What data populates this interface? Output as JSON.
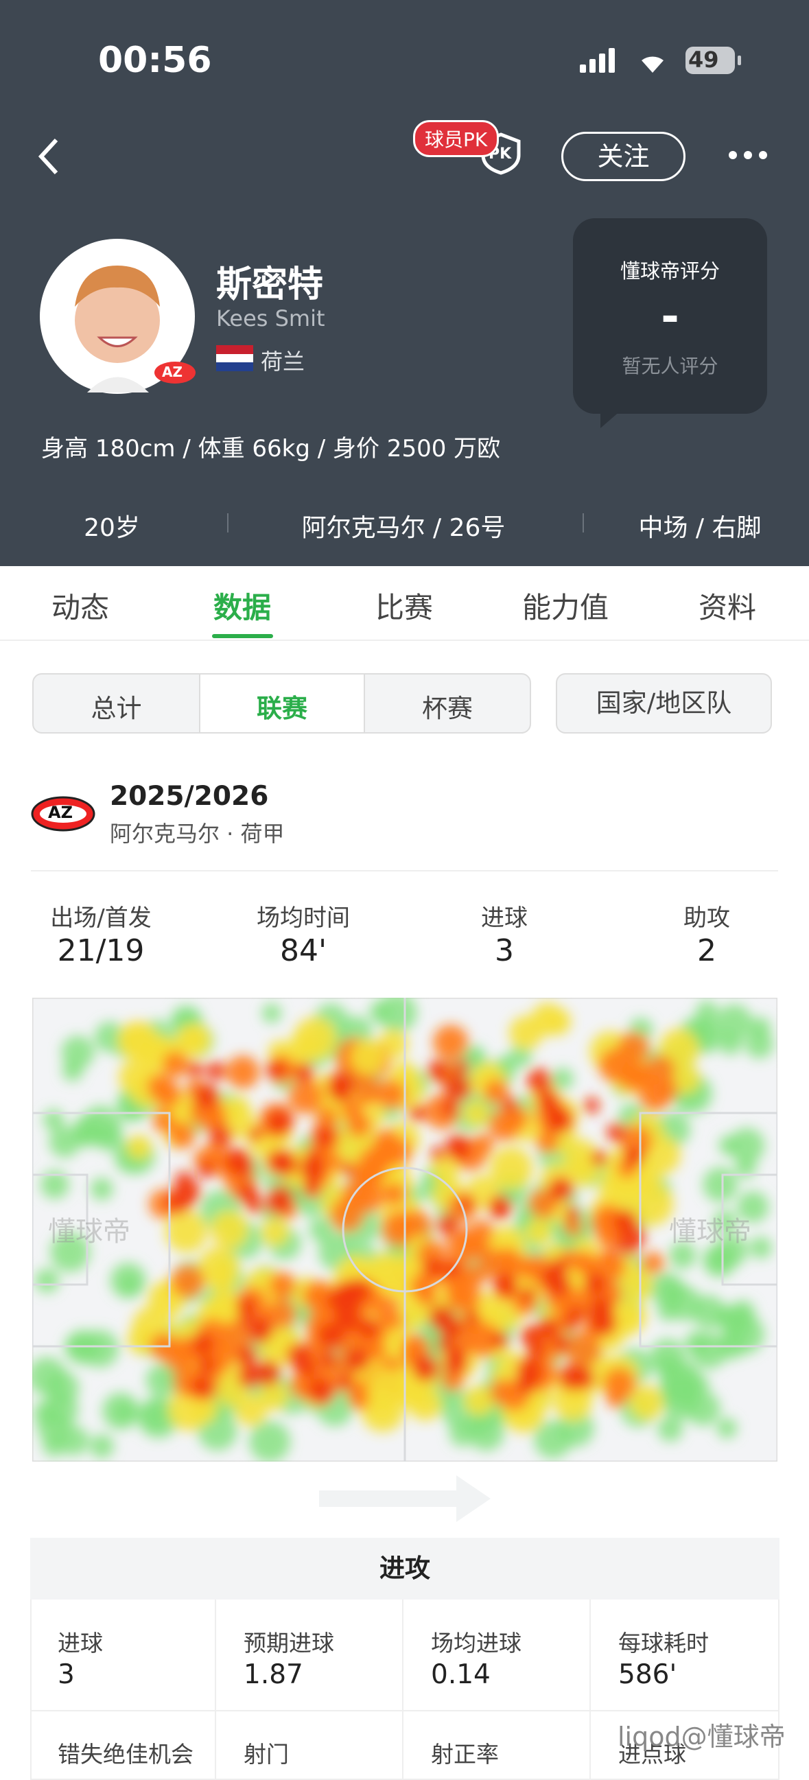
{
  "status": {
    "time": "00:56",
    "battery": "49"
  },
  "header": {
    "pk_badge": "球员PK",
    "pk_icon": "PK",
    "follow": "关注"
  },
  "profile": {
    "name_cn": "斯密特",
    "name_en": "Kees Smit",
    "nationality": "荷兰",
    "club_badge": "AZ",
    "info": "身高 180cm / 体重 66kg / 身价 2500 万欧"
  },
  "rating": {
    "title": "懂球帝评分",
    "value": "-",
    "note": "暂无人评分"
  },
  "meta": [
    "20岁",
    "阿尔克马尔 / 26号",
    "中场 / 右脚"
  ],
  "tabs": [
    "动态",
    "数据",
    "比赛",
    "能力值",
    "资料"
  ],
  "subtabs": [
    "总计",
    "联赛",
    "杯赛"
  ],
  "national_tab": "国家/地区队",
  "season": {
    "badge": "AZ",
    "title": "2025/2026",
    "team": "阿尔克马尔 · 荷甲"
  },
  "summary": [
    {
      "label": "出场/首发",
      "value": "21/19"
    },
    {
      "label": "场均时间",
      "value": "84'"
    },
    {
      "label": "进球",
      "value": "3"
    },
    {
      "label": "助攻",
      "value": "2"
    }
  ],
  "heatmap": {
    "watermark": "懂球帝"
  },
  "attack": {
    "title": "进攻",
    "cells": [
      {
        "label": "进球",
        "value": "3"
      },
      {
        "label": "预期进球",
        "value": "1.87"
      },
      {
        "label": "场均进球",
        "value": "0.14"
      },
      {
        "label": "每球耗时",
        "value": "586'"
      }
    ],
    "more_labels": [
      "错失绝佳机会",
      "射门",
      "射正率",
      "进点球"
    ]
  },
  "footer": {
    "watermark": "liqod@懂球帝"
  }
}
